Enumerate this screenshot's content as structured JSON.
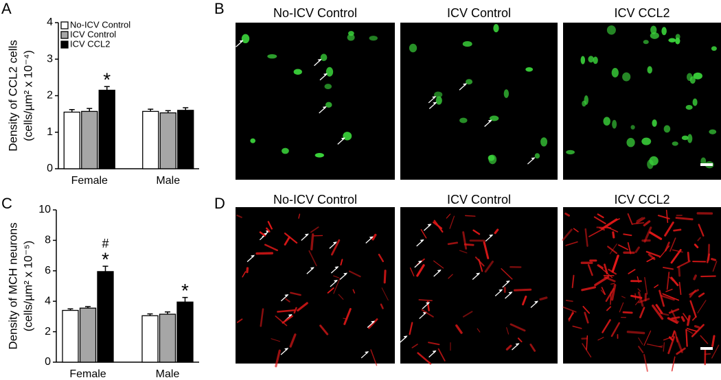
{
  "panel_labels": [
    "A",
    "B",
    "C",
    "D"
  ],
  "micrographs": [
    {
      "titles": [
        "No-ICV Control",
        "ICV Control",
        "ICV CCL2"
      ]
    },
    {
      "titles": [
        "No-ICV Control",
        "ICV Control",
        "ICV CCL2"
      ]
    }
  ],
  "chart_data": [
    {
      "type": "bar",
      "ylabel": [
        "Density of CCL2 cells",
        "(cells/µm² x 10⁻⁴)"
      ],
      "categories": [
        "Female",
        "Male"
      ],
      "series": [
        {
          "name": "No-ICV Control",
          "color": "#ffffff",
          "values": [
            1.55,
            1.57
          ],
          "errors": [
            0.07,
            0.06
          ],
          "annotations": [
            [],
            []
          ]
        },
        {
          "name": "ICV Control",
          "color": "#a6a6a6",
          "values": [
            1.57,
            1.53
          ],
          "errors": [
            0.08,
            0.06
          ],
          "annotations": [
            [],
            []
          ]
        },
        {
          "name": "ICV CCL2",
          "color": "#000000",
          "values": [
            2.15,
            1.6
          ],
          "errors": [
            0.1,
            0.07
          ],
          "annotations": [
            [
              "*"
            ],
            []
          ]
        }
      ],
      "ylim": [
        0,
        4
      ],
      "yticks": [
        0,
        1,
        2,
        3,
        4
      ],
      "legend": "upper left"
    },
    {
      "type": "bar",
      "ylabel": [
        "Density of MCH neurons",
        "(cells/µm² x 10⁻⁵)"
      ],
      "categories": [
        "Female",
        "Male"
      ],
      "series": [
        {
          "color": "#ffffff",
          "values": [
            3.4,
            3.05
          ],
          "errors": [
            0.1,
            0.12
          ],
          "annotations": [
            [],
            []
          ]
        },
        {
          "color": "#a6a6a6",
          "values": [
            3.55,
            3.15
          ],
          "errors": [
            0.1,
            0.15
          ],
          "annotations": [
            [],
            []
          ]
        },
        {
          "color": "#000000",
          "values": [
            5.95,
            3.95
          ],
          "errors": [
            0.35,
            0.3
          ],
          "annotations": [
            [
              "#",
              "*"
            ],
            [
              "*"
            ]
          ]
        }
      ],
      "ylim": [
        0,
        10
      ],
      "yticks": [
        0,
        2,
        4,
        6,
        8,
        10
      ]
    }
  ]
}
